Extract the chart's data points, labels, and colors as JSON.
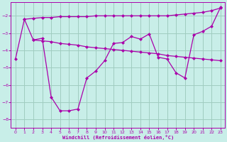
{
  "bg_color": "#c8eee8",
  "grid_color": "#a0ccc0",
  "line_color": "#aa00aa",
  "xlabel": "Windchill (Refroidissement éolien,°C)",
  "xlabel_color": "#aa00aa",
  "tick_color": "#aa00aa",
  "xlim": [
    -0.5,
    23.5
  ],
  "ylim": [
    -8.5,
    -1.2
  ],
  "yticks": [
    -8,
    -7,
    -6,
    -5,
    -4,
    -3,
    -2
  ],
  "xticks": [
    0,
    1,
    2,
    3,
    4,
    5,
    6,
    7,
    8,
    9,
    10,
    11,
    12,
    13,
    14,
    15,
    16,
    17,
    18,
    19,
    20,
    21,
    22,
    23
  ],
  "line1_x": [
    0,
    1,
    2,
    3,
    4,
    5,
    6,
    7,
    8,
    9,
    10,
    11,
    12,
    13,
    14,
    15,
    16,
    17,
    18,
    19,
    20,
    21,
    22,
    23
  ],
  "line1_y": [
    -4.5,
    -2.2,
    -3.4,
    -3.3,
    -6.7,
    -7.5,
    -7.5,
    -7.4,
    -5.6,
    -5.2,
    -4.6,
    -3.6,
    -3.55,
    -3.2,
    -3.35,
    -3.05,
    -4.4,
    -4.5,
    -5.3,
    -5.6,
    -3.1,
    -2.9,
    -2.6,
    -1.5
  ],
  "line2_x": [
    2,
    3,
    4,
    5,
    6,
    7,
    8,
    9,
    10,
    11,
    12,
    13,
    14,
    15,
    16,
    17,
    18,
    19,
    20,
    21,
    22,
    23
  ],
  "line2_y": [
    -3.4,
    -3.45,
    -3.5,
    -3.6,
    -3.65,
    -3.7,
    -3.8,
    -3.85,
    -3.9,
    -3.95,
    -4.0,
    -4.05,
    -4.1,
    -4.15,
    -4.2,
    -4.3,
    -4.35,
    -4.4,
    -4.45,
    -4.5,
    -4.55,
    -4.6
  ],
  "line3_x": [
    1,
    2,
    3,
    4,
    5,
    6,
    7,
    8,
    9,
    10,
    11,
    12,
    13,
    14,
    15,
    16,
    17,
    18,
    19,
    20,
    21,
    22,
    23
  ],
  "line3_y": [
    -2.2,
    -2.15,
    -2.1,
    -2.1,
    -2.05,
    -2.05,
    -2.05,
    -2.05,
    -2.0,
    -2.0,
    -2.0,
    -2.0,
    -2.0,
    -2.0,
    -2.0,
    -2.0,
    -2.0,
    -1.95,
    -1.9,
    -1.85,
    -1.8,
    -1.7,
    -1.55
  ]
}
